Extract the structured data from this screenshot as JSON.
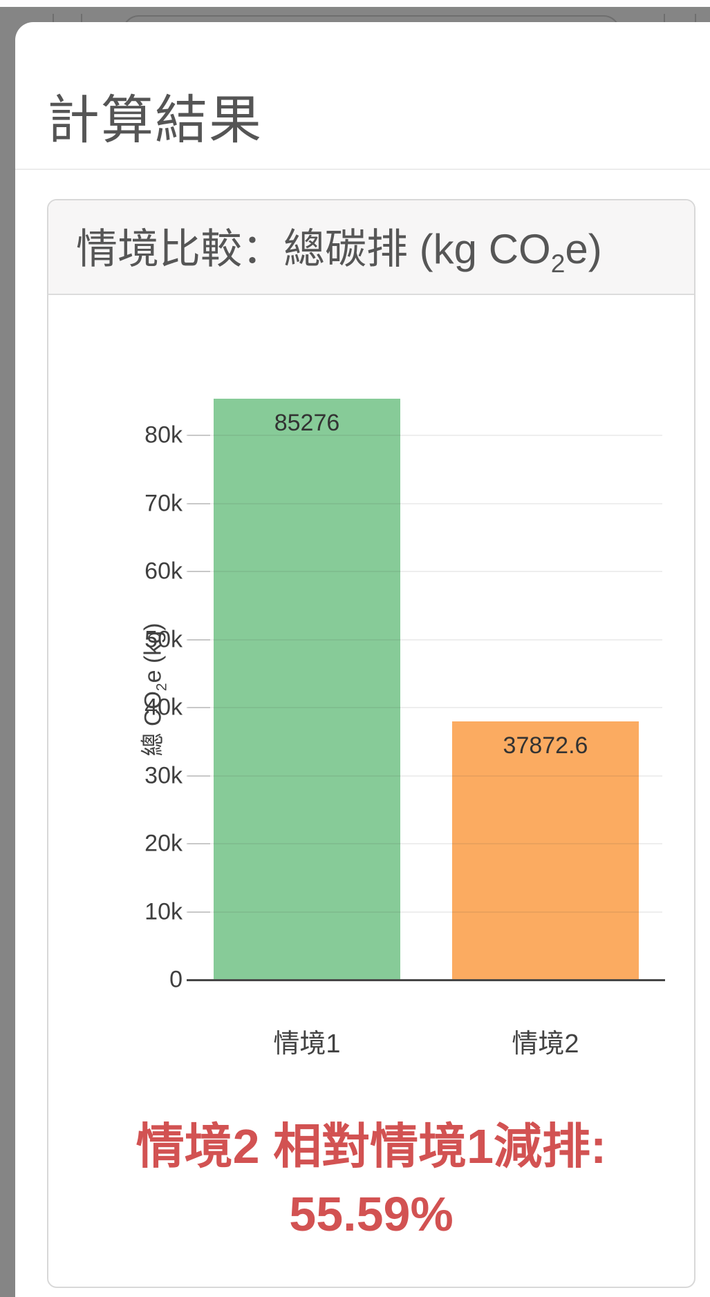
{
  "page": {
    "title": "計算結果"
  },
  "card": {
    "title_prefix": "情境比較：總碳排 (kg CO",
    "title_sub": "2",
    "title_suffix": "e)"
  },
  "chart_data": {
    "type": "bar",
    "title": "情境比較：總碳排 (kg CO₂e)",
    "categories": [
      "情境1",
      "情境2"
    ],
    "values": [
      85276,
      37872.6
    ],
    "value_labels": [
      "85276",
      "37872.6"
    ],
    "bar_colors": [
      "#87cb98",
      "#fbab61"
    ],
    "ylabel": "總 CO₂e (kg)",
    "ylabel_prefix": "總 CO",
    "ylabel_sub": "2",
    "ylabel_suffix": "e (kg)",
    "xlabel": "",
    "ylim": [
      0,
      90000
    ],
    "ytick_step": 10000,
    "yticks": [
      "0",
      "10k",
      "20k",
      "30k",
      "40k",
      "50k",
      "60k",
      "70k",
      "80k"
    ],
    "grid": true,
    "legend": "none"
  },
  "summary": {
    "line1": "情境2 相對情境1減排:",
    "line2": "55.59%"
  },
  "colors": {
    "accent_red": "#d25252",
    "bar_green": "#87cb98",
    "bar_orange": "#fbab61",
    "backdrop_gray": "#858585"
  }
}
